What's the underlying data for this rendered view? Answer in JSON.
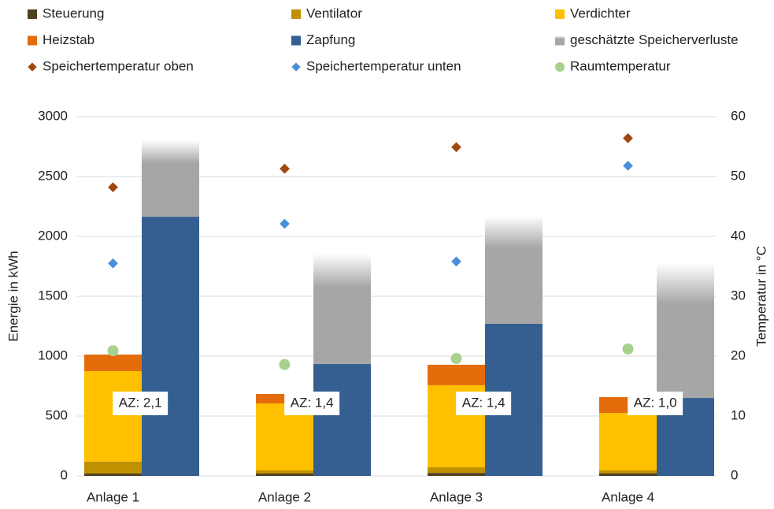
{
  "chart_data": {
    "type": "bar",
    "categories": [
      "Anlage 1",
      "Anlage 2",
      "Anlage 3",
      "Anlage 4"
    ],
    "series": [
      {
        "name": "Steuerung",
        "color": "#4f4020",
        "values": [
          20,
          20,
          25,
          22
        ]
      },
      {
        "name": "Ventilator",
        "color": "#bf9000",
        "values": [
          100,
          26,
          47,
          24
        ]
      },
      {
        "name": "Verdichter",
        "color": "#ffc000",
        "values": [
          755,
          559,
          685,
          480
        ]
      },
      {
        "name": "Heizstab",
        "color": "#e46c0a",
        "values": [
          138,
          79,
          171,
          132
        ]
      },
      {
        "name": "Zapfung",
        "color": "#355f91",
        "values": [
          2164,
          934,
          1270,
          651
        ]
      },
      {
        "name": "geschätzte Speicherverluste",
        "color": "#a6a6a6",
        "values": [
          639,
          921,
          901,
          1125
        ]
      },
      {
        "name": "Speichertemperatur oben",
        "type": "scatter",
        "axis": "y2",
        "color": "#9e480e",
        "values": [
          48.2,
          51.3,
          54.9,
          56.4
        ]
      },
      {
        "name": "Speichertemperatur unten",
        "type": "scatter",
        "axis": "y2",
        "color": "#4a8fd9",
        "values": [
          35.5,
          42.1,
          35.8,
          51.8
        ]
      },
      {
        "name": "Raumtemperatur",
        "type": "scatter",
        "axis": "y2",
        "color": "#a9d18e",
        "values": [
          20.9,
          18.6,
          19.6,
          21.2
        ]
      }
    ],
    "annotations": [
      "AZ: 2,1",
      "AZ: 1,4",
      "AZ: 1,4",
      "AZ: 1,0"
    ],
    "ylabel": "Energie in kWh",
    "y2label": "Temperatur in °C",
    "ylim": [
      0,
      3000
    ],
    "yticks": [
      0,
      500,
      1000,
      1500,
      2000,
      2500,
      3000
    ],
    "y2lim": [
      0,
      60
    ],
    "y2ticks": [
      0,
      10,
      20,
      30,
      40,
      50,
      60
    ],
    "grid": true
  }
}
